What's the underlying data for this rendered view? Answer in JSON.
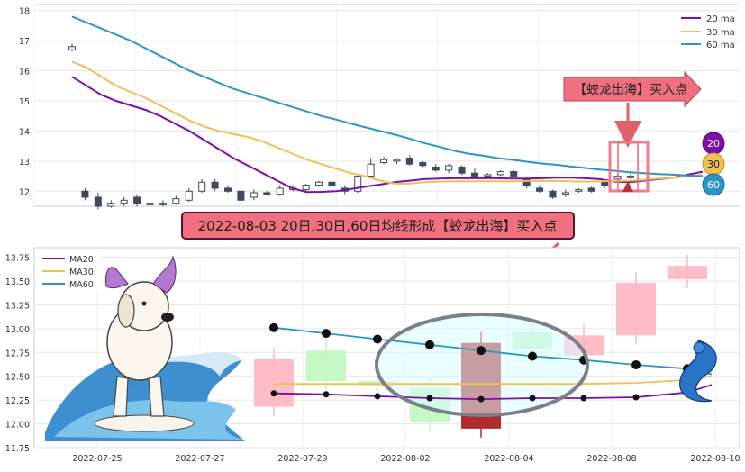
{
  "chart_data": [
    {
      "type": "line",
      "panel": "top",
      "ylim": [
        11.5,
        18.2
      ],
      "yticks": [
        "18",
        "17",
        "16",
        "15",
        "14",
        "13",
        "12"
      ],
      "grid": true,
      "legend_placement": "top-right",
      "series": [
        {
          "name": "20 ma",
          "color": "#7e0ea8",
          "values": [
            15.8,
            15.5,
            15.2,
            15.0,
            14.85,
            14.7,
            14.5,
            14.25,
            14.0,
            13.7,
            13.4,
            13.1,
            12.85,
            12.6,
            12.35,
            12.1,
            11.97,
            11.98,
            12.0,
            12.07,
            12.15,
            12.22,
            12.3,
            12.35,
            12.4,
            12.42,
            12.43,
            12.43,
            12.43,
            12.43,
            12.42,
            12.42,
            12.43,
            12.45,
            12.45,
            12.43,
            12.4,
            12.32,
            12.3,
            12.35,
            12.4,
            12.45,
            12.55,
            12.65
          ]
        },
        {
          "name": "30 ma",
          "color": "#f0c050",
          "values": [
            16.3,
            16.1,
            15.8,
            15.5,
            15.3,
            15.1,
            14.85,
            14.6,
            14.35,
            14.15,
            14.0,
            13.9,
            13.8,
            13.65,
            13.45,
            13.25,
            13.05,
            12.9,
            12.75,
            12.6,
            12.5,
            12.35,
            12.25,
            12.25,
            12.3,
            12.32,
            12.33,
            12.33,
            12.33,
            12.33,
            12.33,
            12.34,
            12.34,
            12.34,
            12.33,
            12.32,
            12.33,
            12.34,
            12.35,
            12.38,
            12.42,
            12.45,
            12.5,
            12.55
          ]
        },
        {
          "name": "60 ma",
          "color": "#2a96c8",
          "values": [
            17.8,
            17.6,
            17.4,
            17.2,
            17.0,
            16.75,
            16.5,
            16.25,
            16.0,
            15.8,
            15.6,
            15.4,
            15.25,
            15.1,
            14.95,
            14.8,
            14.65,
            14.5,
            14.38,
            14.25,
            14.12,
            14.0,
            13.88,
            13.75,
            13.6,
            13.48,
            13.35,
            13.25,
            13.18,
            13.1,
            13.05,
            12.98,
            12.92,
            12.88,
            12.82,
            12.77,
            12.72,
            12.68,
            12.63,
            12.6,
            12.57,
            12.55,
            12.52,
            12.5
          ]
        }
      ],
      "candles": [
        [
          16.7,
          16.8,
          16.9,
          16.65
        ],
        [
          12.0,
          11.8,
          12.1,
          11.7
        ],
        [
          11.8,
          11.5,
          11.95,
          11.4
        ],
        [
          11.5,
          11.6,
          11.7,
          11.45
        ],
        [
          11.6,
          11.7,
          11.8,
          11.5
        ],
        [
          11.8,
          11.6,
          11.9,
          11.5
        ],
        [
          11.55,
          11.6,
          11.7,
          11.45
        ],
        [
          11.55,
          11.6,
          11.7,
          11.5
        ],
        [
          11.6,
          11.75,
          11.85,
          11.55
        ],
        [
          11.7,
          12.0,
          12.1,
          11.65
        ],
        [
          12.0,
          12.3,
          12.4,
          11.95
        ],
        [
          12.3,
          12.1,
          12.4,
          12.0
        ],
        [
          12.1,
          12.0,
          12.2,
          11.95
        ],
        [
          12.0,
          11.7,
          12.1,
          11.6
        ],
        [
          11.8,
          11.95,
          12.05,
          11.7
        ],
        [
          11.95,
          11.9,
          12.0,
          11.85
        ],
        [
          11.9,
          12.1,
          12.2,
          11.85
        ],
        [
          12.05,
          12.1,
          12.2,
          12.0
        ],
        [
          12.05,
          12.2,
          12.25,
          11.95
        ],
        [
          12.2,
          12.3,
          12.35,
          12.15
        ],
        [
          12.3,
          12.2,
          12.35,
          12.1
        ],
        [
          12.1,
          12.0,
          12.2,
          11.9
        ],
        [
          12.0,
          12.5,
          12.55,
          11.95
        ],
        [
          12.5,
          12.9,
          13.1,
          12.45
        ],
        [
          12.95,
          13.05,
          13.15,
          12.9
        ],
        [
          13.0,
          13.05,
          13.1,
          12.9
        ],
        [
          13.1,
          12.9,
          13.2,
          12.85
        ],
        [
          12.95,
          12.85,
          13.0,
          12.8
        ],
        [
          12.8,
          12.7,
          12.9,
          12.65
        ],
        [
          12.7,
          12.85,
          12.9,
          12.6
        ],
        [
          12.8,
          12.6,
          12.85,
          12.55
        ],
        [
          12.6,
          12.5,
          12.75,
          12.45
        ],
        [
          12.5,
          12.55,
          12.6,
          12.45
        ],
        [
          12.55,
          12.65,
          12.7,
          12.5
        ],
        [
          12.65,
          12.5,
          12.7,
          12.45
        ],
        [
          12.4,
          12.2,
          12.45,
          12.1
        ],
        [
          12.1,
          12.0,
          12.2,
          11.95
        ],
        [
          12.0,
          11.8,
          12.05,
          11.75
        ],
        [
          11.9,
          11.95,
          12.05,
          11.8
        ],
        [
          12.0,
          12.05,
          12.1,
          11.95
        ],
        [
          12.1,
          12.0,
          12.15,
          11.95
        ],
        [
          12.3,
          12.2,
          12.35,
          12.1
        ],
        [
          12.4,
          12.5,
          12.55,
          12.35
        ],
        [
          12.5,
          12.45,
          12.6,
          12.4
        ]
      ]
    },
    {
      "type": "bar",
      "panel": "bottom",
      "ylim": [
        11.75,
        13.85
      ],
      "yticks": [
        "13.75",
        "13.50",
        "13.25",
        "13.00",
        "12.75",
        "12.50",
        "12.25",
        "12.00",
        "11.75"
      ],
      "xticks": [
        "2022-07-25",
        "2022-07-27",
        "2022-07-29",
        "2022-08-02",
        "2022-08-04",
        "2022-08-08",
        "2022-08-10"
      ],
      "legend_placement": "top-left",
      "grid": true,
      "series": [
        {
          "name": "MA20",
          "color": "#7e0ea8",
          "values": [
            12.32,
            12.31,
            12.29,
            12.27,
            12.26,
            12.27,
            12.27,
            12.28,
            12.33,
            12.41
          ]
        },
        {
          "name": "MA30",
          "color": "#f0c050",
          "values": [
            12.42,
            12.42,
            12.42,
            12.42,
            12.42,
            12.42,
            12.42,
            12.43,
            12.46,
            12.5
          ]
        },
        {
          "name": "MA60",
          "color": "#2a96c8",
          "values": [
            13.01,
            12.95,
            12.89,
            12.83,
            12.77,
            12.71,
            12.67,
            12.62,
            12.58,
            12.52
          ]
        }
      ],
      "boxes": [
        [
          12.18,
          12.68,
          "pink"
        ],
        [
          12.45,
          12.77,
          "green"
        ],
        [
          12.4,
          12.45,
          "green"
        ],
        [
          12.02,
          12.38,
          "green"
        ],
        [
          11.95,
          12.85,
          "red"
        ],
        [
          12.78,
          12.96,
          "green"
        ],
        [
          12.72,
          12.93,
          "pink"
        ],
        [
          12.93,
          13.48,
          "pink"
        ],
        [
          13.52,
          13.66,
          "pink"
        ]
      ]
    }
  ],
  "annotations": {
    "top_label": "【蛟龙出海】买入点",
    "banner": "2022-08-03 20日,30日,60日均线形成【蛟龙出海】买入点",
    "badge_20": "20",
    "badge_30": "30",
    "badge_60": "60"
  },
  "colors": {
    "ma20": "#7e0ea8",
    "ma30": "#f0c050",
    "ma60": "#2a96c8",
    "banner_fill": "#f07080",
    "up_candle": "#ffffff",
    "down_candle": "#3a4a60"
  }
}
